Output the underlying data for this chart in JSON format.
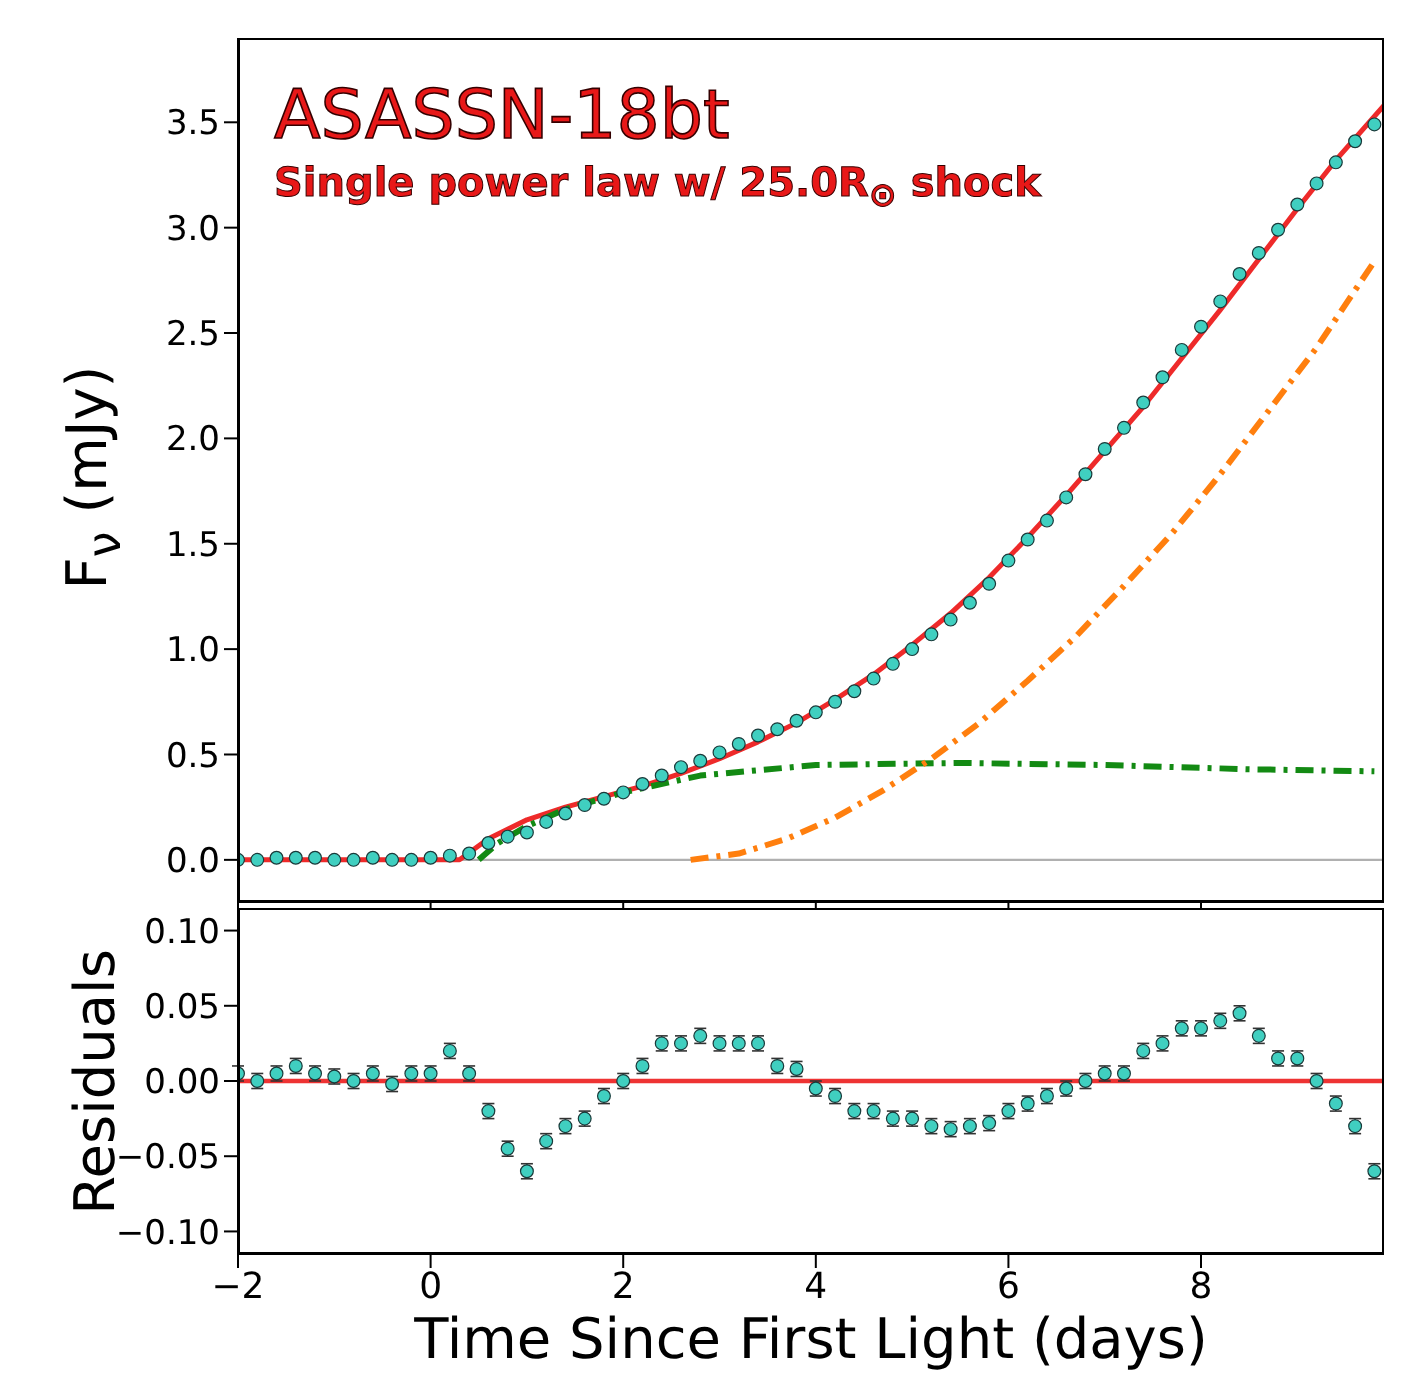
{
  "chart_data": [
    {
      "type": "scatter",
      "title": "ASASSN-18bt",
      "subtitle": "Single power law w/ 25.0R$_{⊙}$ shock",
      "ylabel": "F$_{ν}$ (mJy)",
      "tick_labels": "y",
      "x": [
        -2,
        -1.8,
        -1.6,
        -1.4,
        -1.2,
        -1,
        -0.8,
        -0.6,
        -0.4,
        -0.2,
        0,
        0.2,
        0.4,
        0.6,
        0.8,
        1,
        1.2,
        1.4,
        1.6,
        1.8,
        2,
        2.2,
        2.4,
        2.6,
        2.8,
        3,
        3.2,
        3.4,
        3.6,
        3.8,
        4,
        4.2,
        4.4,
        4.6,
        4.8,
        5,
        5.2,
        5.4,
        5.6,
        5.8,
        6,
        6.2,
        6.4,
        6.6,
        6.8,
        7,
        7.2,
        7.4,
        7.6,
        7.8,
        8,
        8.2,
        8.4,
        8.6,
        8.8,
        9,
        9.2,
        9.4,
        9.6,
        9.8
      ],
      "series": [
        {
          "marker": "circle",
          "color": "#40cfc0",
          "values": [
            0,
            0,
            0.01,
            0.01,
            0.01,
            0,
            0,
            0.01,
            0,
            0,
            0.01,
            0.02,
            0.03,
            0.08,
            0.11,
            0.13,
            0.18,
            0.22,
            0.26,
            0.29,
            0.32,
            0.36,
            0.4,
            0.44,
            0.47,
            0.51,
            0.55,
            0.59,
            0.62,
            0.66,
            0.7,
            0.75,
            0.8,
            0.86,
            0.93,
            1,
            1.07,
            1.14,
            1.22,
            1.31,
            1.42,
            1.52,
            1.61,
            1.72,
            1.83,
            1.95,
            2.05,
            2.17,
            2.29,
            2.42,
            2.53,
            2.65,
            2.78,
            2.88,
            2.99,
            3.11,
            3.21,
            3.31,
            3.41,
            3.49
          ]
        },
        {
          "type": "line",
          "color": "#ee2a2a",
          "line_style": "solid",
          "x": [
            -2,
            0.3,
            0.6,
            1,
            1.4,
            1.8,
            2.2,
            2.6,
            3,
            3.4,
            3.8,
            4.2,
            4.6,
            5,
            5.4,
            5.8,
            6.2,
            6.6,
            7,
            7.4,
            7.8,
            8.2,
            8.6,
            9,
            9.4,
            9.9
          ],
          "values": [
            0,
            0,
            0.1,
            0.19,
            0.25,
            0.3,
            0.35,
            0.41,
            0.48,
            0.56,
            0.65,
            0.76,
            0.88,
            1.02,
            1.17,
            1.34,
            1.53,
            1.73,
            1.94,
            2.15,
            2.38,
            2.61,
            2.85,
            3.09,
            3.32,
            3.58
          ]
        },
        {
          "type": "line",
          "color": "#138a13",
          "line_style": "dashed",
          "x": [
            0.5,
            0.7,
            1,
            1.4,
            2,
            2.8,
            4,
            5.5,
            7,
            8.5,
            9.8
          ],
          "values": [
            0,
            0.08,
            0.16,
            0.24,
            0.32,
            0.4,
            0.45,
            0.46,
            0.45,
            0.43,
            0.42
          ]
        },
        {
          "type": "line",
          "color": "#ff7f0e",
          "line_style": "dashed",
          "x": [
            2.7,
            3.2,
            3.7,
            4.2,
            4.7,
            5.2,
            5.7,
            6.2,
            6.7,
            7.2,
            7.7,
            8.2,
            8.7,
            9.2,
            9.8
          ],
          "values": [
            0,
            0.03,
            0.1,
            0.2,
            0.33,
            0.48,
            0.65,
            0.85,
            1.06,
            1.3,
            1.55,
            1.83,
            2.13,
            2.43,
            2.84
          ]
        }
      ],
      "xlim": [
        -2,
        9.9
      ],
      "xticks": [
        -2,
        0,
        2,
        4,
        6,
        8
      ],
      "ylim": [
        -0.2,
        3.9
      ],
      "yticks": [
        {
          "value": 0,
          "label": "0.0"
        },
        {
          "value": 0.5,
          "label": "0.5"
        },
        {
          "value": 1,
          "label": "1.0"
        },
        {
          "value": 1.5,
          "label": "1.5"
        },
        {
          "value": 2,
          "label": "2.0"
        },
        {
          "value": 2.5,
          "label": "2.5"
        },
        {
          "value": 3,
          "label": "3.0"
        },
        {
          "value": 3.5,
          "label": "3.5"
        }
      ],
      "ref_lines": [
        {
          "axis": "y",
          "value": 0,
          "color": "#b0b0b0",
          "line_style": "solid"
        }
      ]
    },
    {
      "type": "scatter",
      "xlabel": "Time Since First Light (days)",
      "ylabel": "Residuals",
      "x": [
        -2,
        -1.8,
        -1.6,
        -1.4,
        -1.2,
        -1,
        -0.8,
        -0.6,
        -0.4,
        -0.2,
        0,
        0.2,
        0.4,
        0.6,
        0.8,
        1,
        1.2,
        1.4,
        1.6,
        1.8,
        2,
        2.2,
        2.4,
        2.6,
        2.8,
        3,
        3.2,
        3.4,
        3.6,
        3.8,
        4,
        4.2,
        4.4,
        4.6,
        4.8,
        5,
        5.2,
        5.4,
        5.6,
        5.8,
        6,
        6.2,
        6.4,
        6.6,
        6.8,
        7,
        7.2,
        7.4,
        7.6,
        7.8,
        8,
        8.2,
        8.4,
        8.6,
        8.8,
        9,
        9.2,
        9.4,
        9.6,
        9.8
      ],
      "series": [
        {
          "marker": "circle",
          "color": "#40cfc0",
          "values": [
            0.005,
            0,
            0.005,
            0.01,
            0.005,
            0.003,
            0,
            0.005,
            -0.002,
            0.005,
            0.005,
            0.02,
            0.005,
            -0.02,
            -0.045,
            -0.06,
            -0.04,
            -0.03,
            -0.025,
            -0.01,
            0,
            0.01,
            0.025,
            0.025,
            0.03,
            0.025,
            0.025,
            0.025,
            0.01,
            0.008,
            -0.005,
            -0.01,
            -0.02,
            -0.02,
            -0.025,
            -0.025,
            -0.03,
            -0.032,
            -0.03,
            -0.028,
            -0.02,
            -0.015,
            -0.01,
            -0.005,
            0,
            0.005,
            0.005,
            0.02,
            0.025,
            0.035,
            0.035,
            0.04,
            0.045,
            0.03,
            0.015,
            0.015,
            0,
            -0.015,
            -0.03,
            -0.06
          ],
          "errors": [
            0.005,
            0.005,
            0.005,
            0.005,
            0.005,
            0.005,
            0.005,
            0.005,
            0.005,
            0.005,
            0.005,
            0.005,
            0.005,
            0.005,
            0.005,
            0.005,
            0.005,
            0.005,
            0.005,
            0.005,
            0.005,
            0.005,
            0.005,
            0.005,
            0.005,
            0.005,
            0.005,
            0.005,
            0.005,
            0.005,
            0.005,
            0.005,
            0.005,
            0.005,
            0.005,
            0.005,
            0.005,
            0.005,
            0.005,
            0.005,
            0.005,
            0.005,
            0.005,
            0.005,
            0.005,
            0.005,
            0.005,
            0.005,
            0.005,
            0.005,
            0.005,
            0.005,
            0.005,
            0.005,
            0.005,
            0.005,
            0.005,
            0.005,
            0.005,
            0.005
          ]
        }
      ],
      "xlim": [
        -2,
        9.9
      ],
      "xticks": [
        {
          "value": -2,
          "label": "−2"
        },
        0,
        2,
        4,
        6,
        8
      ],
      "ylim": [
        -0.115,
        0.115
      ],
      "yticks": [
        {
          "value": -0.1,
          "label": "−0.10"
        },
        {
          "value": -0.05,
          "label": "−0.05"
        },
        {
          "value": 0,
          "label": "0.00"
        },
        {
          "value": 0.05,
          "label": "0.05"
        },
        {
          "value": 0.1,
          "label": "0.10"
        }
      ],
      "ref_lines": [
        {
          "axis": "y",
          "value": 0,
          "color": "#ee3333",
          "line_style": "solid"
        }
      ]
    }
  ]
}
